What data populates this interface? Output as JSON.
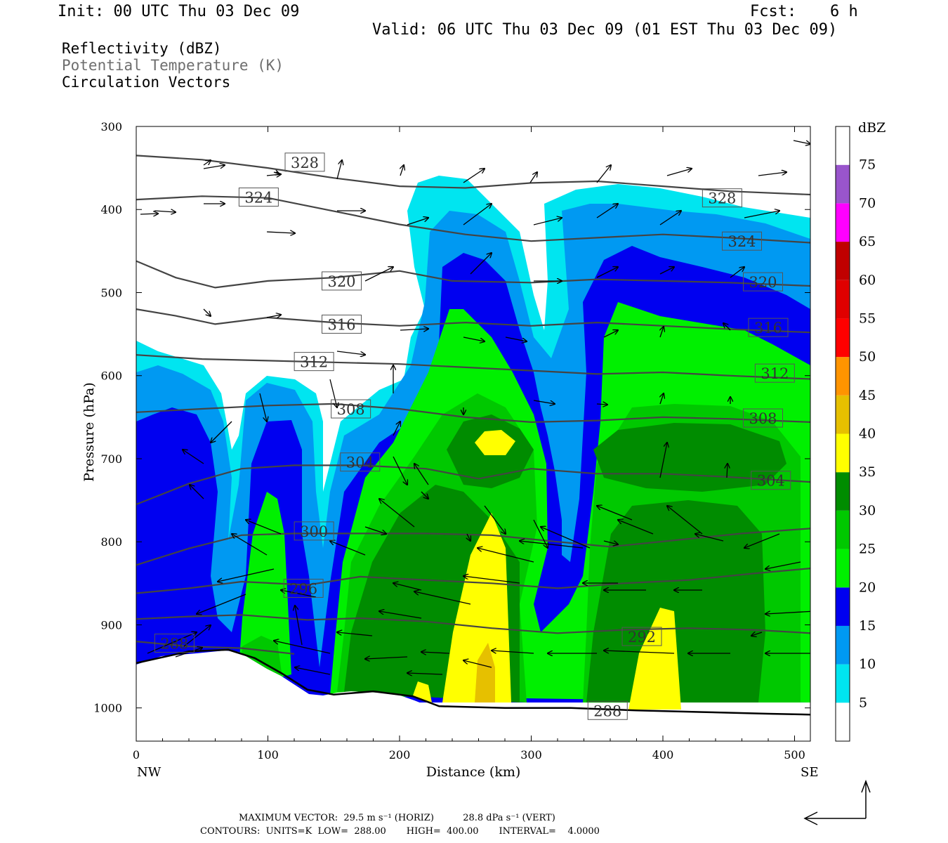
{
  "header": {
    "init": "Init: 00 UTC Thu 03 Dec 09",
    "fcst_label": "Fcst:",
    "fcst_value": "6 h",
    "valid": "Valid: 06 UTC Thu 03 Dec 09 (01 EST Thu 03 Dec 09)"
  },
  "fields": [
    {
      "label": "Reflectivity (dBZ)",
      "color": "#000000"
    },
    {
      "label": "Potential Temperature (K)",
      "color": "#6e6e6e"
    },
    {
      "label": "Circulation Vectors",
      "color": "#000000"
    }
  ],
  "footer": {
    "max_vector_line": "MAXIMUM VECTOR:  29.5 m s⁻¹ (HORIZ)          28.8 dPa s⁻¹ (VERT)",
    "contours_line": "CONTOURS:  UNITS=K  LOW=  288.00       HIGH=  400.00       INTERVAL=    4.0000"
  },
  "chart_data": {
    "type": "heatmap",
    "title": "Reflectivity (dBZ)",
    "xlabel": "Distance (km)",
    "ylabel": "Pressure (hPa)",
    "x_ticks": [
      0,
      100,
      200,
      300,
      400,
      500
    ],
    "y_ticks": [
      300,
      400,
      500,
      600,
      700,
      800,
      900,
      1000
    ],
    "xlim": [
      0,
      512
    ],
    "ylim": [
      1040,
      300
    ],
    "x_end_labels": {
      "left": "NW",
      "right": "SE"
    },
    "colorbar": {
      "units": "dBZ",
      "levels": [
        5,
        10,
        15,
        20,
        25,
        30,
        35,
        40,
        45,
        50,
        55,
        60,
        65,
        70,
        75
      ],
      "colors": [
        "#ffffff",
        "#00e5f0",
        "#0099f2",
        "#0000f0",
        "#00f000",
        "#00c800",
        "#008c00",
        "#ffff00",
        "#e6c000",
        "#ff9400",
        "#ff0000",
        "#e00000",
        "#c00000",
        "#ff00ff",
        "#9955cc"
      ]
    },
    "theta_contours_K": [
      288,
      292,
      296,
      300,
      304,
      308,
      312,
      316,
      320,
      324,
      328
    ],
    "theta_labels": [
      {
        "value": "328",
        "x": 128,
        "p": 343
      },
      {
        "value": "324",
        "x": 93,
        "p": 385
      },
      {
        "value": "320",
        "x": 156,
        "p": 486
      },
      {
        "value": "316",
        "x": 156,
        "p": 538
      },
      {
        "value": "312",
        "x": 135,
        "p": 583
      },
      {
        "value": "308",
        "x": 163,
        "p": 640
      },
      {
        "value": "304",
        "x": 170,
        "p": 704
      },
      {
        "value": "300",
        "x": 135,
        "p": 787
      },
      {
        "value": "296",
        "x": 127,
        "p": 856
      },
      {
        "value": "292",
        "x": 384,
        "p": 914
      },
      {
        "value": "288",
        "x": 29,
        "p": 922
      },
      {
        "value": "288",
        "x": 358,
        "p": 1003
      },
      {
        "value": "328",
        "x": 445,
        "p": 386
      },
      {
        "value": "324",
        "x": 460,
        "p": 438
      },
      {
        "value": "320",
        "x": 476,
        "p": 487
      },
      {
        "value": "316",
        "x": 480,
        "p": 542
      },
      {
        "value": "312",
        "x": 485,
        "p": 597
      },
      {
        "value": "308",
        "x": 476,
        "p": 651
      },
      {
        "value": "304",
        "x": 482,
        "p": 726
      }
    ],
    "theta_lines": [
      {
        "value": 328,
        "pts": [
          [
            0,
            335
          ],
          [
            50,
            340
          ],
          [
            100,
            350
          ],
          [
            150,
            362
          ],
          [
            200,
            372
          ],
          [
            250,
            374
          ],
          [
            300,
            368
          ],
          [
            350,
            366
          ],
          [
            400,
            372
          ],
          [
            450,
            378
          ],
          [
            512,
            382
          ]
        ]
      },
      {
        "value": 324,
        "pts": [
          [
            0,
            388
          ],
          [
            50,
            384
          ],
          [
            100,
            386
          ],
          [
            150,
            402
          ],
          [
            200,
            418
          ],
          [
            250,
            430
          ],
          [
            300,
            438
          ],
          [
            350,
            434
          ],
          [
            400,
            430
          ],
          [
            450,
            434
          ],
          [
            512,
            440
          ]
        ]
      },
      {
        "value": 320,
        "pts": [
          [
            0,
            462
          ],
          [
            30,
            482
          ],
          [
            60,
            494
          ],
          [
            100,
            486
          ],
          [
            150,
            482
          ],
          [
            200,
            474
          ],
          [
            240,
            486
          ],
          [
            300,
            488
          ],
          [
            350,
            484
          ],
          [
            400,
            486
          ],
          [
            450,
            488
          ],
          [
            512,
            492
          ]
        ]
      },
      {
        "value": 316,
        "pts": [
          [
            0,
            520
          ],
          [
            30,
            528
          ],
          [
            60,
            538
          ],
          [
            100,
            530
          ],
          [
            150,
            536
          ],
          [
            200,
            540
          ],
          [
            250,
            536
          ],
          [
            300,
            540
          ],
          [
            350,
            536
          ],
          [
            400,
            540
          ],
          [
            450,
            544
          ],
          [
            512,
            548
          ]
        ]
      },
      {
        "value": 312,
        "pts": [
          [
            0,
            575
          ],
          [
            50,
            580
          ],
          [
            100,
            582
          ],
          [
            150,
            584
          ],
          [
            200,
            586
          ],
          [
            250,
            590
          ],
          [
            300,
            594
          ],
          [
            350,
            598
          ],
          [
            400,
            596
          ],
          [
            450,
            600
          ],
          [
            512,
            604
          ]
        ]
      },
      {
        "value": 308,
        "pts": [
          [
            0,
            644
          ],
          [
            50,
            640
          ],
          [
            100,
            636
          ],
          [
            150,
            634
          ],
          [
            200,
            640
          ],
          [
            250,
            650
          ],
          [
            300,
            656
          ],
          [
            350,
            654
          ],
          [
            400,
            650
          ],
          [
            450,
            652
          ],
          [
            512,
            656
          ]
        ]
      },
      {
        "value": 304,
        "pts": [
          [
            0,
            755
          ],
          [
            40,
            730
          ],
          [
            80,
            712
          ],
          [
            120,
            708
          ],
          [
            170,
            708
          ],
          [
            220,
            712
          ],
          [
            260,
            724
          ],
          [
            300,
            712
          ],
          [
            350,
            718
          ],
          [
            400,
            718
          ],
          [
            450,
            722
          ],
          [
            512,
            728
          ]
        ]
      },
      {
        "value": 300,
        "pts": [
          [
            0,
            828
          ],
          [
            40,
            808
          ],
          [
            80,
            792
          ],
          [
            120,
            790
          ],
          [
            170,
            790
          ],
          [
            220,
            790
          ],
          [
            270,
            792
          ],
          [
            320,
            800
          ],
          [
            360,
            806
          ],
          [
            410,
            798
          ],
          [
            460,
            790
          ],
          [
            512,
            784
          ]
        ]
      },
      {
        "value": 296,
        "pts": [
          [
            0,
            862
          ],
          [
            40,
            856
          ],
          [
            80,
            848
          ],
          [
            130,
            852
          ],
          [
            170,
            842
          ],
          [
            220,
            846
          ],
          [
            270,
            850
          ],
          [
            320,
            856
          ],
          [
            370,
            850
          ],
          [
            420,
            846
          ],
          [
            470,
            838
          ],
          [
            512,
            832
          ]
        ]
      },
      {
        "value": 292,
        "pts": [
          [
            0,
            893
          ],
          [
            40,
            890
          ],
          [
            80,
            888
          ],
          [
            130,
            894
          ],
          [
            170,
            892
          ],
          [
            220,
            896
          ],
          [
            270,
            904
          ],
          [
            320,
            910
          ],
          [
            370,
            906
          ],
          [
            420,
            904
          ],
          [
            470,
            906
          ],
          [
            512,
            910
          ]
        ]
      },
      {
        "value": 288,
        "pts": [
          [
            0,
            920
          ],
          [
            40,
            926
          ],
          [
            80,
            928
          ],
          [
            120,
            935
          ]
        ]
      }
    ],
    "terrain_surface": [
      [
        0,
        946
      ],
      [
        40,
        932
      ],
      [
        70,
        930
      ],
      [
        90,
        940
      ],
      [
        110,
        958
      ],
      [
        130,
        978
      ],
      [
        150,
        984
      ],
      [
        180,
        980
      ],
      [
        210,
        986
      ],
      [
        230,
        998
      ],
      [
        280,
        1000
      ],
      [
        330,
        1000
      ],
      [
        380,
        1003
      ],
      [
        430,
        1005
      ],
      [
        480,
        1007
      ],
      [
        512,
        1008
      ]
    ],
    "reflectivity_maxima_dBZ": [
      {
        "x": 275,
        "p": 980,
        "dBZ": 40
      },
      {
        "x": 270,
        "p": 850,
        "dBZ": 35
      },
      {
        "x": 270,
        "p": 680,
        "dBZ": 35
      },
      {
        "x": 400,
        "p": 950,
        "dBZ": 35
      }
    ],
    "max_vector": {
      "horiz": "29.5 m s⁻¹",
      "vert": "28.8 dPa s⁻¹"
    },
    "contours": {
      "units": "K",
      "low": 288.0,
      "high": 400.0,
      "interval": 4.0
    }
  }
}
